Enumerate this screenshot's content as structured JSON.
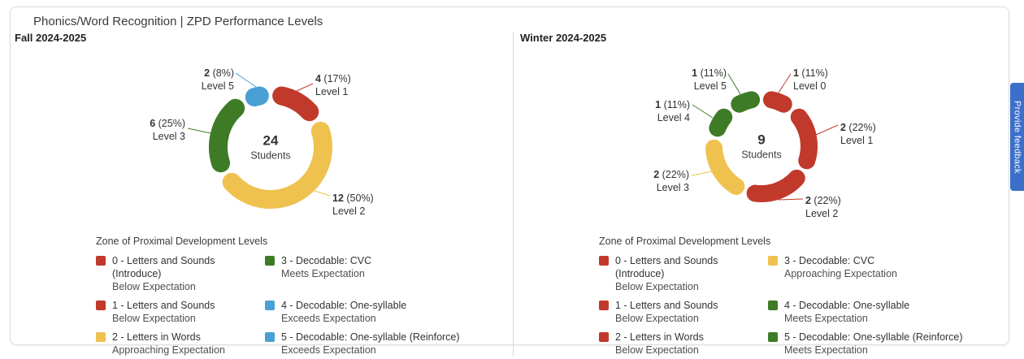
{
  "page_title": "Phonics/Word Recognition | ZPD Performance Levels",
  "feedback_tab": {
    "label": "Provide feedback",
    "color": "#3b6fca"
  },
  "colors": {
    "red": "#c0392b",
    "yellow": "#efc24f",
    "green": "#3e7b26",
    "blue": "#4aa0d5",
    "card_border": "#dcdcdc",
    "divider": "#d9d9d9",
    "text": "#333333"
  },
  "chart_data": [
    {
      "type": "pie",
      "subtype": "donut",
      "title": "Fall 2024-2025",
      "total_label": {
        "value": "24",
        "unit": "Students"
      },
      "legend_title": "Zone of Proximal Development Levels",
      "segments": [
        {
          "label": "Level 1",
          "value": 4,
          "pct": "17%",
          "color": "#c0392b"
        },
        {
          "label": "Level 2",
          "value": 12,
          "pct": "50%",
          "color": "#efc24f"
        },
        {
          "label": "Level 3",
          "value": 6,
          "pct": "25%",
          "color": "#3e7b26"
        },
        {
          "label": "Level 5",
          "value": 2,
          "pct": "8%",
          "color": "#4aa0d5"
        }
      ],
      "legend": [
        {
          "color": "#c0392b",
          "name": "0 - Letters and Sounds (Introduce)",
          "status": "Below Expectation"
        },
        {
          "color": "#c0392b",
          "name": "1 - Letters and Sounds",
          "status": "Below Expectation"
        },
        {
          "color": "#efc24f",
          "name": "2 - Letters in Words",
          "status": "Approaching Expectation"
        },
        {
          "color": "#3e7b26",
          "name": "3 - Decodable: CVC",
          "status": "Meets Expectation"
        },
        {
          "color": "#4aa0d5",
          "name": "4 - Decodable: One-syllable",
          "status": "Exceeds Expectation"
        },
        {
          "color": "#4aa0d5",
          "name": "5 - Decodable: One-syllable (Reinforce)",
          "status": "Exceeds Expectation"
        }
      ]
    },
    {
      "type": "pie",
      "subtype": "donut",
      "title": "Winter 2024-2025",
      "total_label": {
        "value": "9",
        "unit": "Students"
      },
      "legend_title": "Zone of Proximal Development Levels",
      "segments": [
        {
          "label": "Level 0",
          "value": 1,
          "pct": "11%",
          "color": "#c0392b"
        },
        {
          "label": "Level 1",
          "value": 2,
          "pct": "22%",
          "color": "#c0392b"
        },
        {
          "label": "Level 2",
          "value": 2,
          "pct": "22%",
          "color": "#c0392b"
        },
        {
          "label": "Level 3",
          "value": 2,
          "pct": "22%",
          "color": "#efc24f"
        },
        {
          "label": "Level 4",
          "value": 1,
          "pct": "11%",
          "color": "#3e7b26"
        },
        {
          "label": "Level 5",
          "value": 1,
          "pct": "11%",
          "color": "#3e7b26"
        }
      ],
      "legend": [
        {
          "color": "#c0392b",
          "name": "0 - Letters and Sounds (Introduce)",
          "status": "Below Expectation"
        },
        {
          "color": "#c0392b",
          "name": "1 - Letters and Sounds",
          "status": "Below Expectation"
        },
        {
          "color": "#c0392b",
          "name": "2 - Letters in Words",
          "status": "Below Expectation"
        },
        {
          "color": "#efc24f",
          "name": "3 - Decodable: CVC",
          "status": "Approaching Expectation"
        },
        {
          "color": "#3e7b26",
          "name": "4 - Decodable: One-syllable",
          "status": "Meets Expectation"
        },
        {
          "color": "#3e7b26",
          "name": "5 - Decodable: One-syllable (Reinforce)",
          "status": "Meets Expectation"
        }
      ]
    }
  ]
}
